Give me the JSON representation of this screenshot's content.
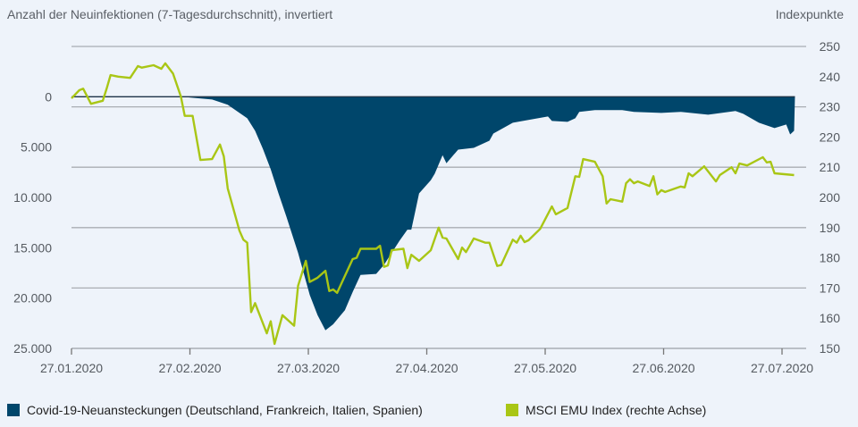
{
  "chart_data": {
    "type": "area+line",
    "left_axis": {
      "title": "Anzahl der Neuinfektionen (7-Tagesdurchschnitt), invertiert",
      "range": [
        -5000,
        25000
      ],
      "inverted": true,
      "ticks": [
        0,
        5000,
        10000,
        15000,
        20000,
        25000
      ],
      "tick_labels": [
        "0",
        "5.000",
        "10.000",
        "15.000",
        "20.000",
        "25.000"
      ]
    },
    "right_axis": {
      "title": "Indexpunkte",
      "range": [
        150,
        250
      ],
      "ticks": [
        150,
        160,
        170,
        180,
        190,
        200,
        210,
        220,
        230,
        240,
        250
      ],
      "tick_labels": [
        "150",
        "160",
        "170",
        "180",
        "190",
        "200",
        "210",
        "220",
        "230",
        "240",
        "250"
      ]
    },
    "x_axis": {
      "range": [
        "2020-01-27",
        "2020-07-31"
      ],
      "ticks": [
        "2020-01-27",
        "2020-02-27",
        "2020-03-27",
        "2020-04-27",
        "2020-05-27",
        "2020-06-27",
        "2020-07-27"
      ],
      "tick_labels": [
        "27.01.2020",
        "27.02.2020",
        "27.03.2020",
        "27.04.2020",
        "27.05.2020",
        "27.06.2020",
        "27.07.2020"
      ]
    },
    "grid": true,
    "legend_position": "bottom",
    "series": [
      {
        "name": "Covid-19-Neuansteckungen (Deutschland, Frankreich, Italien, Spanien)",
        "type": "area",
        "axis": "left",
        "color": "#00466b",
        "points": [
          [
            "2020-02-24",
            0
          ],
          [
            "2020-03-03",
            270
          ],
          [
            "2020-03-07",
            800
          ],
          [
            "2020-03-11",
            1870
          ],
          [
            "2020-03-12",
            2140
          ],
          [
            "2020-03-14",
            3380
          ],
          [
            "2020-03-16",
            5160
          ],
          [
            "2020-03-18",
            7200
          ],
          [
            "2020-03-20",
            9600
          ],
          [
            "2020-03-22",
            11900
          ],
          [
            "2020-03-25",
            15500
          ],
          [
            "2020-03-28",
            19700
          ],
          [
            "2020-03-30",
            21700
          ],
          [
            "2020-04-01",
            23200
          ],
          [
            "2020-04-03",
            22600
          ],
          [
            "2020-04-06",
            21200
          ],
          [
            "2020-04-08",
            19400
          ],
          [
            "2020-04-10",
            17700
          ],
          [
            "2020-04-14",
            17600
          ],
          [
            "2020-04-16",
            16700
          ],
          [
            "2020-04-20",
            14300
          ],
          [
            "2020-04-22",
            13200
          ],
          [
            "2020-04-23",
            13200
          ],
          [
            "2020-04-24",
            11400
          ],
          [
            "2020-04-25",
            9600
          ],
          [
            "2020-04-28",
            8300
          ],
          [
            "2020-04-29",
            7650
          ],
          [
            "2020-05-01",
            5800
          ],
          [
            "2020-05-02",
            6600
          ],
          [
            "2020-05-05",
            5250
          ],
          [
            "2020-05-09",
            5070
          ],
          [
            "2020-05-13",
            4360
          ],
          [
            "2020-05-14",
            3650
          ],
          [
            "2020-05-19",
            2580
          ],
          [
            "2020-05-23",
            2300
          ],
          [
            "2020-05-28",
            1960
          ],
          [
            "2020-05-29",
            2400
          ],
          [
            "2020-06-02",
            2490
          ],
          [
            "2020-06-04",
            2140
          ],
          [
            "2020-06-05",
            1510
          ],
          [
            "2020-06-09",
            1330
          ],
          [
            "2020-06-16",
            1330
          ],
          [
            "2020-06-19",
            1510
          ],
          [
            "2020-06-26",
            1600
          ],
          [
            "2020-07-01",
            1500
          ],
          [
            "2020-07-08",
            1780
          ],
          [
            "2020-07-15",
            1420
          ],
          [
            "2020-07-17",
            1690
          ],
          [
            "2020-07-21",
            2580
          ],
          [
            "2020-07-25",
            3110
          ],
          [
            "2020-07-28",
            2760
          ],
          [
            "2020-07-29",
            3740
          ],
          [
            "2020-07-30",
            3380
          ]
        ]
      },
      {
        "name": "MSCI EMU Index (rechte Achse)",
        "type": "line",
        "axis": "right",
        "color": "#a9c615",
        "points": [
          [
            "2020-01-27",
            232.8
          ],
          [
            "2020-01-29",
            235.5
          ],
          [
            "2020-01-30",
            236
          ],
          [
            "2020-02-01",
            231
          ],
          [
            "2020-02-04",
            232
          ],
          [
            "2020-02-05",
            236
          ],
          [
            "2020-02-06",
            240.5
          ],
          [
            "2020-02-08",
            240
          ],
          [
            "2020-02-11",
            239.6
          ],
          [
            "2020-02-13",
            243.5
          ],
          [
            "2020-02-14",
            243
          ],
          [
            "2020-02-17",
            243.8
          ],
          [
            "2020-02-19",
            242.6
          ],
          [
            "2020-02-20",
            244.4
          ],
          [
            "2020-02-22",
            241
          ],
          [
            "2020-02-24",
            233.4
          ],
          [
            "2020-02-25",
            227
          ],
          [
            "2020-02-27",
            227
          ],
          [
            "2020-02-29",
            212.4
          ],
          [
            "2020-03-03",
            212.7
          ],
          [
            "2020-03-05",
            217.5
          ],
          [
            "2020-03-06",
            213.6
          ],
          [
            "2020-03-07",
            203
          ],
          [
            "2020-03-10",
            189
          ],
          [
            "2020-03-11",
            186
          ],
          [
            "2020-03-12",
            185
          ],
          [
            "2020-03-13",
            162
          ],
          [
            "2020-03-14",
            165
          ],
          [
            "2020-03-17",
            155
          ],
          [
            "2020-03-18",
            159
          ],
          [
            "2020-03-19",
            151.5
          ],
          [
            "2020-03-21",
            161
          ],
          [
            "2020-03-24",
            157.5
          ],
          [
            "2020-03-25",
            170.7
          ],
          [
            "2020-03-27",
            179
          ],
          [
            "2020-03-28",
            172
          ],
          [
            "2020-03-30",
            173.4
          ],
          [
            "2020-04-01",
            175.7
          ],
          [
            "2020-04-02",
            169
          ],
          [
            "2020-04-03",
            169.5
          ],
          [
            "2020-04-04",
            168.4
          ],
          [
            "2020-04-08",
            179.6
          ],
          [
            "2020-04-09",
            180
          ],
          [
            "2020-04-10",
            183
          ],
          [
            "2020-04-14",
            183
          ],
          [
            "2020-04-15",
            184
          ],
          [
            "2020-04-16",
            177
          ],
          [
            "2020-04-17",
            177.5
          ],
          [
            "2020-04-18",
            182.5
          ],
          [
            "2020-04-21",
            183
          ],
          [
            "2020-04-22",
            176.6
          ],
          [
            "2020-04-23",
            181
          ],
          [
            "2020-04-25",
            179
          ],
          [
            "2020-04-28",
            182.5
          ],
          [
            "2020-04-30",
            190
          ],
          [
            "2020-05-01",
            186.7
          ],
          [
            "2020-05-02",
            186.4
          ],
          [
            "2020-05-05",
            179.6
          ],
          [
            "2020-05-06",
            183.4
          ],
          [
            "2020-05-07",
            181.9
          ],
          [
            "2020-05-09",
            186.4
          ],
          [
            "2020-05-12",
            185
          ],
          [
            "2020-05-13",
            185
          ],
          [
            "2020-05-15",
            177.3
          ],
          [
            "2020-05-16",
            177.6
          ],
          [
            "2020-05-19",
            186
          ],
          [
            "2020-05-20",
            185
          ],
          [
            "2020-05-21",
            187.3
          ],
          [
            "2020-05-22",
            185.2
          ],
          [
            "2020-05-23",
            185.8
          ],
          [
            "2020-05-26",
            189.6
          ],
          [
            "2020-05-29",
            197
          ],
          [
            "2020-05-30",
            194.4
          ],
          [
            "2020-06-02",
            196.5
          ],
          [
            "2020-06-04",
            207
          ],
          [
            "2020-06-05",
            206.8
          ],
          [
            "2020-06-06",
            212.7
          ],
          [
            "2020-06-09",
            211.8
          ],
          [
            "2020-06-11",
            207
          ],
          [
            "2020-06-12",
            198
          ],
          [
            "2020-06-13",
            199.4
          ],
          [
            "2020-06-16",
            198.6
          ],
          [
            "2020-06-17",
            204.7
          ],
          [
            "2020-06-18",
            206
          ],
          [
            "2020-06-19",
            204.7
          ],
          [
            "2020-06-20",
            205.3
          ],
          [
            "2020-06-23",
            203.8
          ],
          [
            "2020-06-24",
            207
          ],
          [
            "2020-06-25",
            201
          ],
          [
            "2020-06-26",
            202.4
          ],
          [
            "2020-06-27",
            201.8
          ],
          [
            "2020-07-01",
            203.6
          ],
          [
            "2020-07-02",
            203.3
          ],
          [
            "2020-07-03",
            208
          ],
          [
            "2020-07-04",
            207
          ],
          [
            "2020-07-07",
            210.3
          ],
          [
            "2020-07-10",
            205.3
          ],
          [
            "2020-07-11",
            207.4
          ],
          [
            "2020-07-14",
            210
          ],
          [
            "2020-07-15",
            208
          ],
          [
            "2020-07-16",
            211.2
          ],
          [
            "2020-07-18",
            210.6
          ],
          [
            "2020-07-22",
            213.3
          ],
          [
            "2020-07-23",
            211.6
          ],
          [
            "2020-07-24",
            211.8
          ],
          [
            "2020-07-25",
            208
          ],
          [
            "2020-07-30",
            207.4
          ]
        ]
      }
    ]
  }
}
